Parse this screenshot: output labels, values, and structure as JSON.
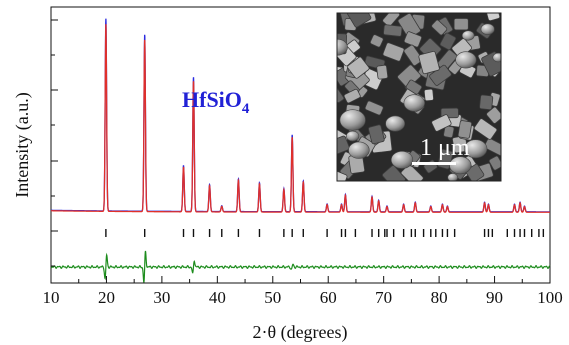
{
  "chart_data": {
    "type": "line",
    "title": "",
    "xlabel": "2·θ (degrees)",
    "ylabel": "Intensity (a.u.)",
    "xlim": [
      10,
      100
    ],
    "x_ticks": [
      "10",
      "20",
      "30",
      "40",
      "50",
      "60",
      "70",
      "80",
      "90",
      "100"
    ],
    "y_ticks_labeled": false,
    "grid": false,
    "annotations": {
      "compound_base": "HfSiO",
      "compound_sub": "4",
      "scale_bar_label": "1 μm"
    },
    "colors": {
      "observed": "#2a2ae0",
      "calculated": "#e0302a",
      "difference": "#1c8c1c",
      "bragg_ticks": "#111111"
    },
    "series": [
      {
        "kind": "observed_and_calculated",
        "baseline": 0.02,
        "peaks": [
          {
            "x": 19.9,
            "y": 1.0
          },
          {
            "x": 26.9,
            "y": 0.92
          },
          {
            "x": 33.9,
            "y": 0.24
          },
          {
            "x": 35.7,
            "y": 0.7
          },
          {
            "x": 38.6,
            "y": 0.14
          },
          {
            "x": 40.8,
            "y": 0.03
          },
          {
            "x": 43.8,
            "y": 0.17
          },
          {
            "x": 47.6,
            "y": 0.15
          },
          {
            "x": 52.0,
            "y": 0.12
          },
          {
            "x": 53.5,
            "y": 0.4
          },
          {
            "x": 55.5,
            "y": 0.16
          },
          {
            "x": 59.8,
            "y": 0.04
          },
          {
            "x": 62.4,
            "y": 0.04
          },
          {
            "x": 63.1,
            "y": 0.09
          },
          {
            "x": 67.9,
            "y": 0.08
          },
          {
            "x": 69.1,
            "y": 0.06
          },
          {
            "x": 70.6,
            "y": 0.03
          },
          {
            "x": 73.6,
            "y": 0.04
          },
          {
            "x": 75.7,
            "y": 0.05
          },
          {
            "x": 78.5,
            "y": 0.03
          },
          {
            "x": 80.6,
            "y": 0.04
          },
          {
            "x": 81.5,
            "y": 0.03
          },
          {
            "x": 88.2,
            "y": 0.05
          },
          {
            "x": 88.9,
            "y": 0.04
          },
          {
            "x": 93.6,
            "y": 0.04
          },
          {
            "x": 94.6,
            "y": 0.05
          },
          {
            "x": 95.4,
            "y": 0.03
          }
        ]
      }
    ],
    "bragg_positions": [
      19.9,
      26.9,
      33.9,
      35.7,
      38.6,
      40.8,
      43.8,
      47.6,
      52.0,
      53.5,
      55.5,
      59.8,
      62.4,
      63.1,
      64.9,
      67.9,
      69.1,
      70.2,
      70.6,
      71.8,
      73.6,
      75.0,
      75.7,
      77.2,
      78.5,
      79.4,
      80.6,
      81.5,
      82.8,
      88.2,
      88.9,
      89.6,
      92.3,
      93.6,
      94.6,
      95.4,
      96.7,
      98.0,
      98.8
    ],
    "difference_features": [
      {
        "x": 19.9,
        "amp": 0.07
      },
      {
        "x": 26.9,
        "amp": 0.09
      },
      {
        "x": 35.7,
        "amp": 0.04
      },
      {
        "x": 53.5,
        "amp": 0.015
      }
    ]
  }
}
